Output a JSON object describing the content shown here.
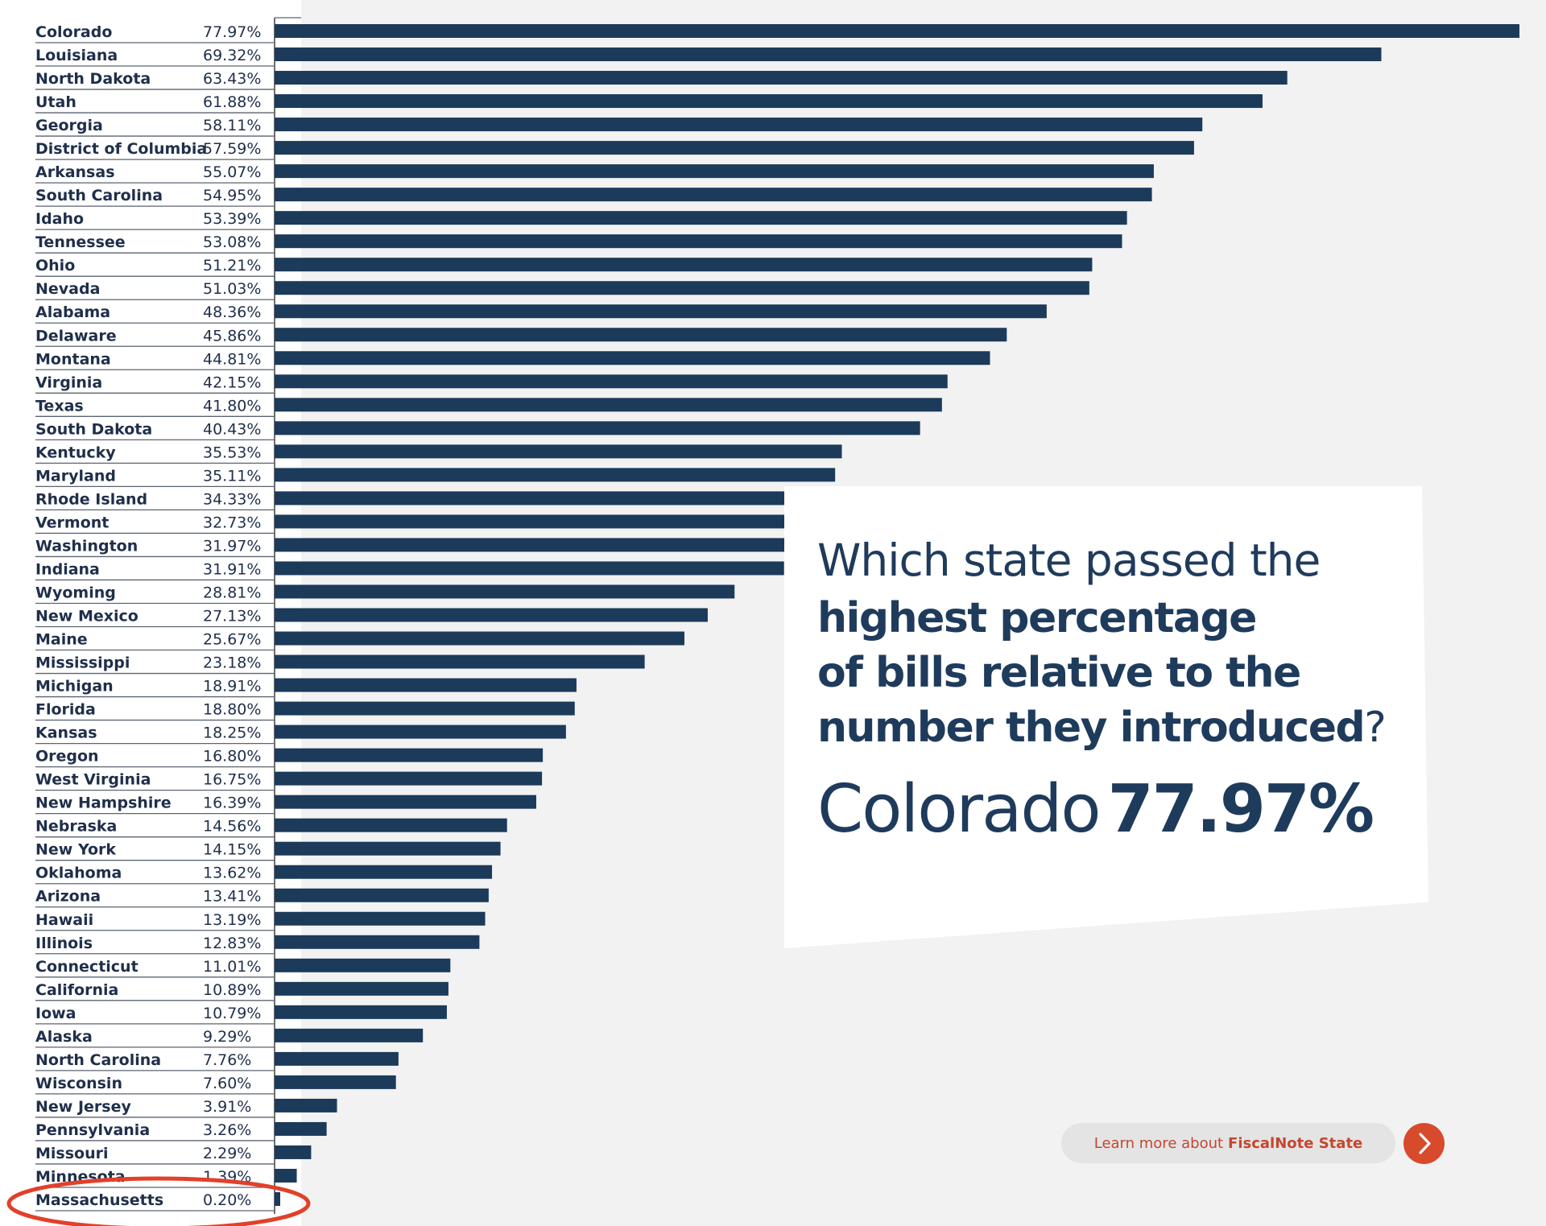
{
  "chart_data": {
    "type": "bar",
    "orientation": "horizontal",
    "categories": [
      "Colorado",
      "Louisiana",
      "North Dakota",
      "Utah",
      "Georgia",
      "District of Columbia",
      "Arkansas",
      "South Carolina",
      "Idaho",
      "Tennessee",
      "Ohio",
      "Nevada",
      "Alabama",
      "Delaware",
      "Montana",
      "Virginia",
      "Texas",
      "South Dakota",
      "Kentucky",
      "Maryland",
      "Rhode Island",
      "Vermont",
      "Washington",
      "Indiana",
      "Wyoming",
      "New Mexico",
      "Maine",
      "Mississippi",
      "Michigan",
      "Florida",
      "Kansas",
      "Oregon",
      "West Virginia",
      "New Hampshire",
      "Nebraska",
      "New York",
      "Oklahoma",
      "Arizona",
      "Hawaii",
      "Illinois",
      "Connecticut",
      "California",
      "Iowa",
      "Alaska",
      "North Carolina",
      "Wisconsin",
      "New Jersey",
      "Pennsylvania",
      "Missouri",
      "Minnesota",
      "Massachusetts"
    ],
    "values": [
      77.97,
      69.32,
      63.43,
      61.88,
      58.11,
      57.59,
      55.07,
      54.95,
      53.39,
      53.08,
      51.21,
      51.03,
      48.36,
      45.86,
      44.81,
      42.15,
      41.8,
      40.43,
      35.53,
      35.11,
      34.33,
      32.73,
      31.97,
      31.91,
      28.81,
      27.13,
      25.67,
      23.18,
      18.91,
      18.8,
      18.25,
      16.8,
      16.75,
      16.39,
      14.56,
      14.15,
      13.62,
      13.41,
      13.19,
      12.83,
      11.01,
      10.89,
      10.79,
      9.29,
      7.76,
      7.6,
      3.91,
      3.26,
      2.29,
      1.39,
      0.2
    ],
    "value_labels": [
      "77.97%",
      "69.32%",
      "63.43%",
      "61.88%",
      "58.11%",
      "57.59%",
      "55.07%",
      "54.95%",
      "53.39%",
      "53.08%",
      "51.21%",
      "51.03%",
      "48.36%",
      "45.86%",
      "44.81%",
      "42.15%",
      "41.80%",
      "40.43%",
      "35.53%",
      "35.11%",
      "34.33%",
      "32.73%",
      "31.97%",
      "31.91%",
      "28.81%",
      "27.13%",
      "25.67%",
      "23.18%",
      "18.91%",
      "18.80%",
      "18.25%",
      "16.80%",
      "16.75%",
      "16.39%",
      "14.56%",
      "14.15%",
      "13.62%",
      "13.41%",
      "13.19%",
      "12.83%",
      "11.01%",
      "10.89%",
      "10.79%",
      "9.29%",
      "7.76%",
      "7.60%",
      "3.91%",
      "3.26%",
      "2.29%",
      "1.39%",
      "0.20%"
    ],
    "unit": "%",
    "xlim": [
      0,
      78
    ],
    "highlighted": "Massachusetts",
    "grid": false,
    "colors": {
      "bar": "#1c3a5a",
      "highlight_ring": "#e1402b"
    }
  },
  "callout": {
    "question_line_1": "Which state passed the",
    "question_bold_1": "highest percentage",
    "question_bold_2": "of bills relative to the",
    "question_bold_3": "number they introduced",
    "question_mark": "?",
    "answer_state": "Colorado",
    "answer_value": "77.97%"
  },
  "cta": {
    "prefix": "Learn more about",
    "brand": "FiscalNote State",
    "arrow_icon": "chevron-right-icon",
    "colors": {
      "text": "#c4472f",
      "button": "#d84a2c",
      "pill": "#e4e4e4"
    }
  }
}
